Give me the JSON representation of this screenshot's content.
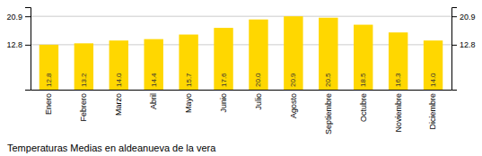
{
  "chart_data": {
    "type": "bar",
    "title": "Temperaturas Medias en aldeanueva de la vera",
    "categories": [
      "Enero",
      "Febrero",
      "Marzo",
      "Abril",
      "Mayo",
      "Junio",
      "Julio",
      "Agosto",
      "Septiembre",
      "Octubre",
      "Noviembre",
      "Diciembre"
    ],
    "values": [
      12.8,
      13.2,
      14.0,
      14.4,
      15.7,
      17.6,
      20.0,
      20.9,
      20.5,
      18.5,
      16.3,
      14.0
    ],
    "value_labels": [
      "12.8",
      "13.2",
      "14.0",
      "14.4",
      "15.7",
      "17.6",
      "20.0",
      "20.9",
      "20.5",
      "18.5",
      "16.3",
      "14.0"
    ],
    "color": "#FFD700",
    "ylim": [
      0.0,
      23.5
    ],
    "yticks": [
      12.8,
      20.9
    ],
    "grid": true,
    "data_labels": true
  }
}
